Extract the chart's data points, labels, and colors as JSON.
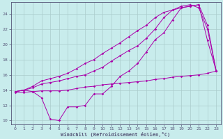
{
  "xlabel": "Windchill (Refroidissement éolien,°C)",
  "bg_color": "#c8ecec",
  "line_color": "#aa00aa",
  "grid_color": "#aacccc",
  "axis_color": "#555577",
  "xlim": [
    -0.5,
    23.5
  ],
  "ylim": [
    9.5,
    25.5
  ],
  "yticks": [
    10,
    12,
    14,
    16,
    18,
    20,
    22,
    24
  ],
  "xticks": [
    0,
    1,
    2,
    3,
    4,
    5,
    6,
    7,
    8,
    9,
    10,
    11,
    12,
    13,
    14,
    15,
    16,
    17,
    18,
    19,
    20,
    21,
    22,
    23
  ],
  "line1_x": [
    0,
    1,
    2,
    3,
    4,
    5,
    6,
    7,
    8,
    9,
    10,
    11,
    12,
    13,
    14,
    15,
    16,
    17,
    18,
    19,
    20,
    21,
    22,
    23
  ],
  "line1_y": [
    13.8,
    14.0,
    13.8,
    13.0,
    10.2,
    10.0,
    11.8,
    11.8,
    12.0,
    13.5,
    13.5,
    14.5,
    15.8,
    16.5,
    17.5,
    19.0,
    20.6,
    21.5,
    23.2,
    24.8,
    25.0,
    25.2,
    20.5,
    16.5
  ],
  "line2_x": [
    0,
    1,
    2,
    3,
    4,
    5,
    6,
    7,
    8,
    9,
    10,
    11,
    12,
    13,
    14,
    15,
    16,
    17,
    18,
    19,
    20,
    21,
    22,
    23
  ],
  "line2_y": [
    13.8,
    14.0,
    14.3,
    14.8,
    15.0,
    15.2,
    15.5,
    15.8,
    16.0,
    16.5,
    17.0,
    17.8,
    18.5,
    19.2,
    19.8,
    20.8,
    22.0,
    23.5,
    24.5,
    24.8,
    25.0,
    25.2,
    22.5,
    16.5
  ],
  "line3_x": [
    0,
    1,
    2,
    3,
    4,
    5,
    6,
    7,
    8,
    9,
    10,
    11,
    12,
    13,
    14,
    15,
    16,
    17,
    18,
    19,
    20,
    21,
    22,
    23
  ],
  "line3_y": [
    13.8,
    14.0,
    14.5,
    15.2,
    15.5,
    15.8,
    16.2,
    16.8,
    17.5,
    18.0,
    18.8,
    19.5,
    20.2,
    21.0,
    21.8,
    22.5,
    23.5,
    24.2,
    24.5,
    25.0,
    25.2,
    24.8,
    22.0,
    16.5
  ],
  "line4_x": [
    0,
    1,
    2,
    3,
    4,
    5,
    6,
    7,
    8,
    9,
    10,
    11,
    12,
    13,
    14,
    15,
    16,
    17,
    18,
    19,
    20,
    21,
    22,
    23
  ],
  "line4_y": [
    13.7,
    13.7,
    13.8,
    13.9,
    13.9,
    13.9,
    14.0,
    14.2,
    14.4,
    14.5,
    14.7,
    14.8,
    14.9,
    15.0,
    15.1,
    15.2,
    15.4,
    15.5,
    15.7,
    15.8,
    15.9,
    16.0,
    16.2,
    16.5
  ]
}
